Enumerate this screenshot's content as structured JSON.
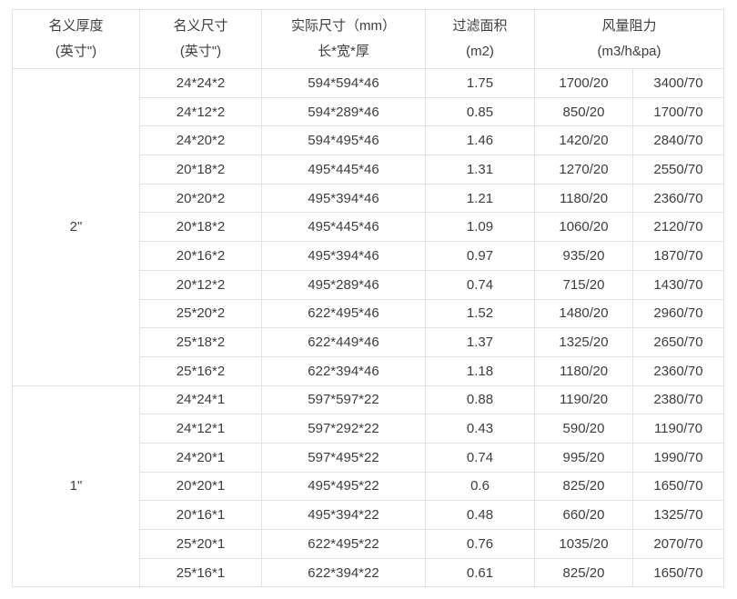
{
  "colors": {
    "background": "#ffffff",
    "border": "#e2e2e2",
    "text": "#3d3d3d"
  },
  "chart_data": {
    "type": "table",
    "title": "",
    "columns": [
      {
        "line1": "名义厚度",
        "line2": "(英寸\")"
      },
      {
        "line1": "名义尺寸",
        "line2": "(英寸\")"
      },
      {
        "line1": "实际尺寸（mm）",
        "line2": "长*宽*厚"
      },
      {
        "line1": "过滤面积",
        "line2": "(m2)"
      },
      {
        "line1": "风量阻力",
        "line2": "(m3/h&pa)"
      }
    ],
    "sections": [
      {
        "thickness": "2\"",
        "rows": [
          [
            "24*24*2",
            "594*594*46",
            "1.75",
            "1700/20",
            "3400/70"
          ],
          [
            "24*12*2",
            "594*289*46",
            "0.85",
            "850/20",
            "1700/70"
          ],
          [
            "24*20*2",
            "594*495*46",
            "1.46",
            "1420/20",
            "2840/70"
          ],
          [
            "20*18*2",
            "495*445*46",
            "1.31",
            "1270/20",
            "2550/70"
          ],
          [
            "20*20*2",
            "495*394*46",
            "1.21",
            "1180/20",
            "2360/70"
          ],
          [
            "20*18*2",
            "495*445*46",
            "1.09",
            "1060/20",
            "2120/70"
          ],
          [
            "20*16*2",
            "495*394*46",
            "0.97",
            "935/20",
            "1870/70"
          ],
          [
            "20*12*2",
            "495*289*46",
            "0.74",
            "715/20",
            "1430/70"
          ],
          [
            "25*20*2",
            "622*495*46",
            "1.52",
            "1480/20",
            "2960/70"
          ],
          [
            "25*18*2",
            "622*449*46",
            "1.37",
            "1325/20",
            "2650/70"
          ],
          [
            "25*16*2",
            "622*394*46",
            "1.18",
            "1180/20",
            "2360/70"
          ]
        ]
      },
      {
        "thickness": "1\"",
        "rows": [
          [
            "24*24*1",
            "597*597*22",
            "0.88",
            "1190/20",
            "2380/70"
          ],
          [
            "24*12*1",
            "597*292*22",
            "0.43",
            "590/20",
            "1190/70"
          ],
          [
            "24*20*1",
            "597*495*22",
            "0.74",
            "995/20",
            "1990/70"
          ],
          [
            "20*20*1",
            "495*495*22",
            "0.6",
            "825/20",
            "1650/70"
          ],
          [
            "20*16*1",
            "495*394*22",
            "0.48",
            "660/20",
            "1325/70"
          ],
          [
            "25*20*1",
            "622*495*22",
            "0.76",
            "1035/20",
            "2070/70"
          ],
          [
            "25*16*1",
            "622*394*22",
            "0.61",
            "825/20",
            "1650/70"
          ]
        ]
      }
    ]
  }
}
